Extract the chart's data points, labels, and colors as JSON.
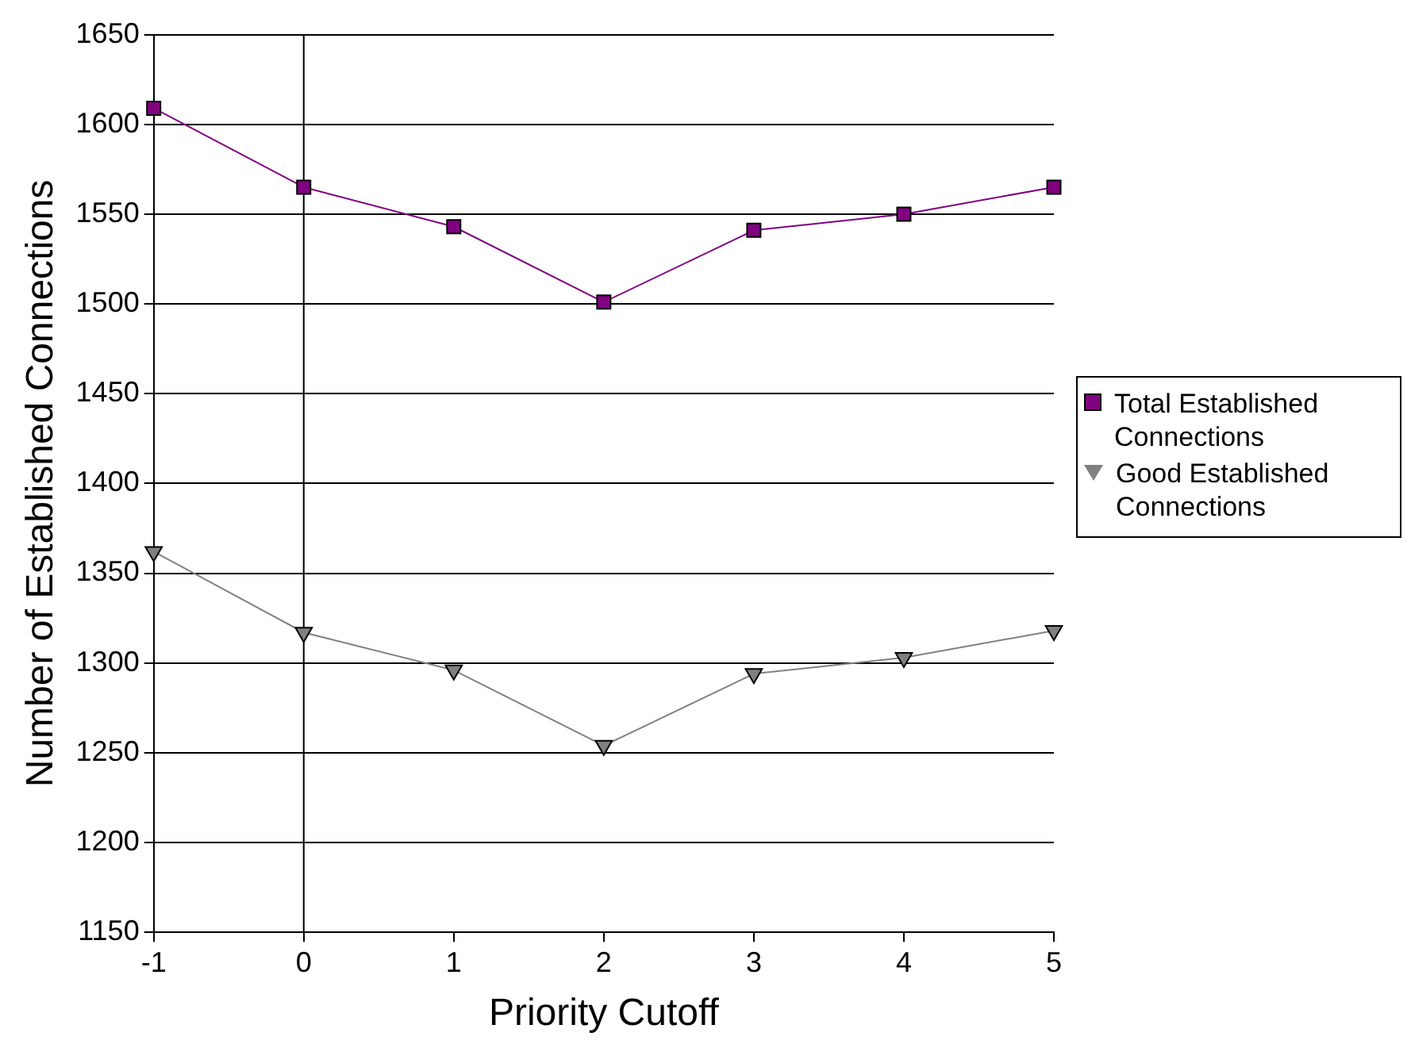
{
  "chart_data": {
    "type": "line",
    "xlabel": "Priority Cutoff",
    "ylabel": "Number of Established Connections",
    "x": [
      -1,
      0,
      1,
      2,
      3,
      4,
      5
    ],
    "series": [
      {
        "name": "Total Established Connections",
        "color": "#800080",
        "marker": "square",
        "values": [
          1609,
          1565,
          1543,
          1501,
          1541,
          1550,
          1565
        ]
      },
      {
        "name": "Good Established Connections",
        "color": "#808080",
        "marker": "triangle",
        "values": [
          1362,
          1317,
          1296,
          1254,
          1294,
          1303,
          1318
        ]
      }
    ],
    "xlim": [
      -1,
      5
    ],
    "xticks": [
      -1,
      0,
      1,
      2,
      3,
      4,
      5
    ],
    "ylim": [
      1150,
      1650
    ],
    "yticks": [
      1150,
      1200,
      1250,
      1300,
      1350,
      1400,
      1450,
      1500,
      1550,
      1600,
      1650
    ],
    "grid": "y",
    "legend": "right",
    "ref_lines": [
      {
        "axis": "x",
        "value": 0
      }
    ]
  }
}
